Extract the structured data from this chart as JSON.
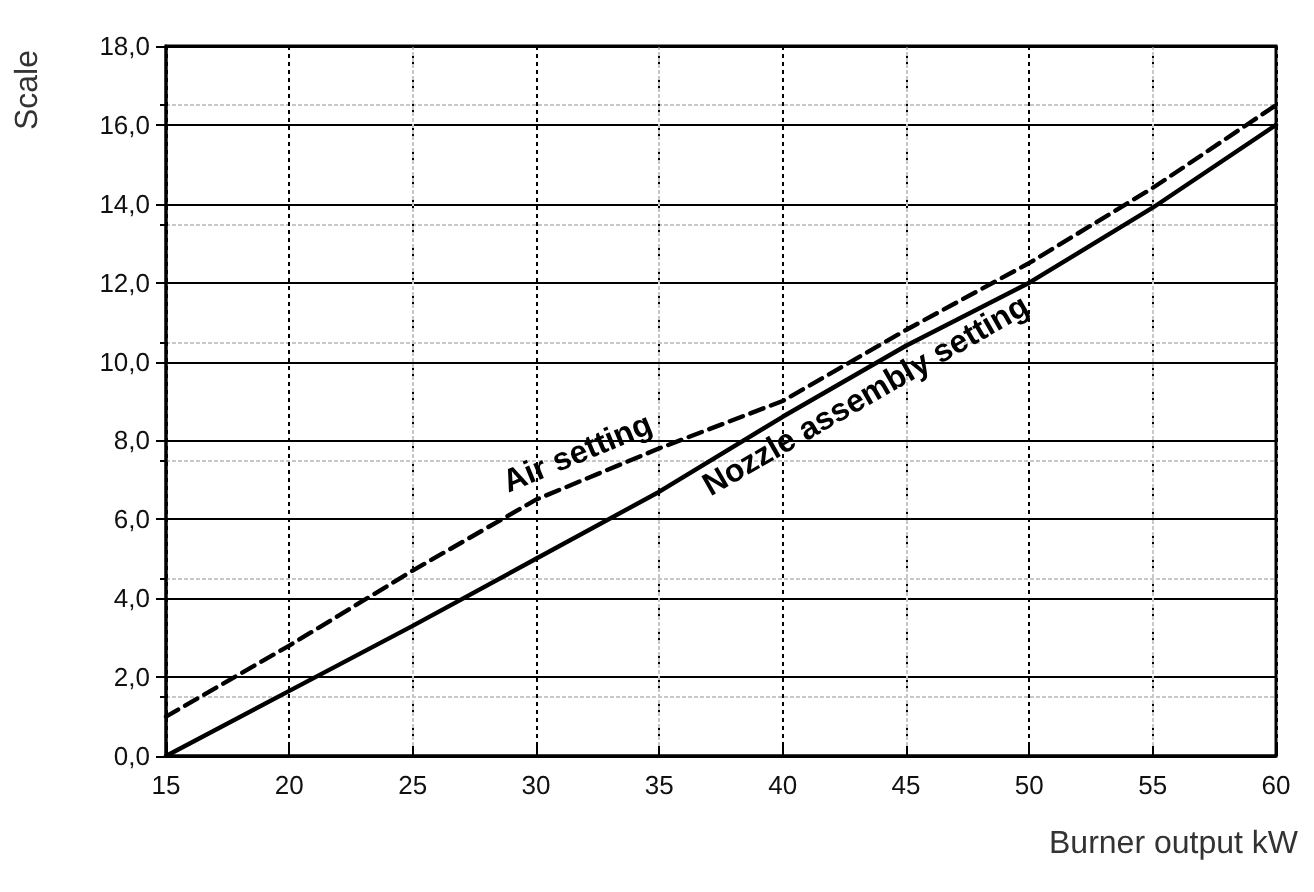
{
  "chart_data": {
    "type": "line",
    "xlabel": "Burner output kW",
    "ylabel": "Scale",
    "x": [
      15,
      20,
      25,
      30,
      35,
      40,
      45,
      50,
      55,
      60
    ],
    "series": [
      {
        "name": "Nozzle assembly setting",
        "color": "#000000",
        "line_style": "solid",
        "values": [
          0,
          1.65,
          3.3,
          5.0,
          6.7,
          8.6,
          10.4,
          12.0,
          13.9,
          16.0
        ]
      },
      {
        "name": "Air setting",
        "color": "#000000",
        "line_style": "dashed",
        "values": [
          1.0,
          2.8,
          4.7,
          6.5,
          7.8,
          9.0,
          10.8,
          12.5,
          14.4,
          16.5
        ]
      }
    ],
    "xlim": [
      15,
      60
    ],
    "xticks": [
      15,
      20,
      25,
      30,
      35,
      40,
      45,
      50,
      55,
      60
    ],
    "ylim": [
      0,
      18
    ],
    "yticks": [
      {
        "value": 0,
        "label": "0,0"
      },
      {
        "value": 2,
        "label": "2,0"
      },
      {
        "value": 4,
        "label": "4,0"
      },
      {
        "value": 6,
        "label": "6,0"
      },
      {
        "value": 8,
        "label": "8,0"
      },
      {
        "value": 10,
        "label": "10,0"
      },
      {
        "value": 12,
        "label": "12,0"
      },
      {
        "value": 14,
        "label": "14,0"
      },
      {
        "value": 16,
        "label": "16,0"
      },
      {
        "value": 18,
        "label": "18,0"
      }
    ],
    "grid": true,
    "legend": false,
    "marker": "none"
  }
}
